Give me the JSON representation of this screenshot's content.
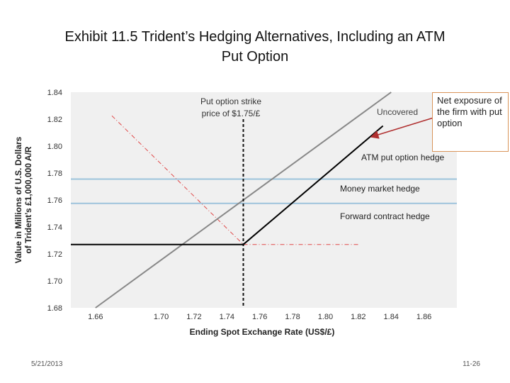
{
  "slide": {
    "title_line1": "Exhibit 11.5  Trident’s Hedging Alternatives, Including an ATM",
    "title_line2": "Put Option",
    "footer_date": "5/21/2013",
    "footer_slide": "11-26"
  },
  "callout": {
    "text": "Net exposure of the firm with put option"
  },
  "colors": {
    "plot_bg": "#f0f0f0",
    "uncovered": "#888888",
    "put_hedge": "#000000",
    "money_market": "#9dc3dc",
    "forward": "#9dc3dc",
    "red_guides": "#e04848",
    "arrow": "#b03030",
    "callout_border": "#d9955a"
  },
  "chart_data": {
    "type": "line",
    "title": "",
    "xlabel": "Ending Spot Exchange Rate (US$/£)",
    "ylabel": [
      "Value in Millions of U.S. Dollars",
      "of Trident’s £1,000,000 A/R"
    ],
    "xlim": [
      1.645,
      1.88
    ],
    "ylim": [
      1.68,
      1.84
    ],
    "x_ticks": [
      1.66,
      1.7,
      1.72,
      1.74,
      1.76,
      1.78,
      1.8,
      1.82,
      1.84,
      1.86
    ],
    "y_ticks": [
      1.68,
      1.7,
      1.72,
      1.74,
      1.76,
      1.78,
      1.8,
      1.82,
      1.84
    ],
    "grid": false,
    "series": [
      {
        "name": "Uncovered",
        "x": [
          1.66,
          1.84
        ],
        "y": [
          1.68,
          1.84
        ]
      },
      {
        "name": "ATM put option hedge",
        "x": [
          1.645,
          1.75,
          1.835
        ],
        "y": [
          1.727,
          1.727,
          1.815
        ]
      },
      {
        "name": "Money market hedge",
        "x": [
          1.645,
          1.88
        ],
        "y": [
          1.7755,
          1.7755
        ]
      },
      {
        "name": "Forward contract hedge",
        "x": [
          1.645,
          1.88
        ],
        "y": [
          1.7575,
          1.7575
        ]
      }
    ],
    "guides": {
      "strike_x": 1.75,
      "diagonal": {
        "x": [
          1.67,
          1.75
        ],
        "y": [
          1.8225,
          1.727
        ]
      },
      "horizontal": {
        "x": [
          1.75,
          1.82
        ],
        "y": [
          1.727,
          1.727
        ]
      }
    },
    "annotations": [
      {
        "text": [
          "Put option strike",
          "price of $1.75/£"
        ]
      },
      {
        "text": [
          "Uncovered"
        ]
      },
      {
        "text": [
          "ATM put option hedge"
        ]
      },
      {
        "text": [
          "Money market hedge"
        ]
      },
      {
        "text": [
          "Forward contract hedge"
        ]
      }
    ]
  }
}
